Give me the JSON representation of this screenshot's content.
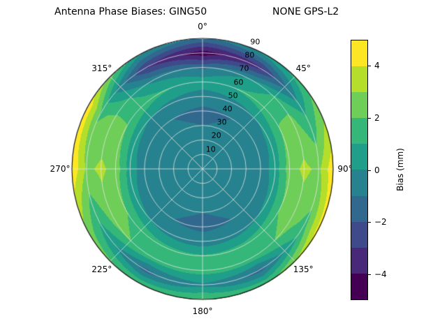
{
  "title": {
    "left": "Antenna Phase Biases: GING50",
    "right": "NONE GPS-L2"
  },
  "chart_data": {
    "type": "heatmap",
    "projection": "polar",
    "style": "filled-contour",
    "title": "Antenna Phase Biases: GING50        NONE GPS-L2",
    "colormap": "viridis",
    "theta_zero_location": "top",
    "theta_direction": "clockwise",
    "theta_ticks_deg": [
      0,
      45,
      90,
      135,
      180,
      225,
      270,
      315
    ],
    "theta_tick_labels": [
      "0°",
      "45°",
      "90°",
      "135°",
      "180°",
      "225°",
      "270°",
      "315°"
    ],
    "r_ticks": [
      10,
      20,
      30,
      40,
      50,
      60,
      70,
      80,
      90
    ],
    "r_tick_labels": [
      "10",
      "20",
      "30",
      "40",
      "50",
      "60",
      "70",
      "80",
      "90"
    ],
    "r_max": 90,
    "levels": [
      -5,
      -4,
      -3,
      -2,
      -1,
      0,
      1,
      2,
      3,
      4,
      5
    ],
    "level_colors": [
      "#440154",
      "#482878",
      "#3e4a89",
      "#31688e",
      "#26828e",
      "#1f9e89",
      "#35b779",
      "#6ece58",
      "#b5de2b",
      "#fde725"
    ],
    "azimuth_deg": [
      0,
      30,
      60,
      90,
      120,
      150,
      180,
      210,
      240,
      270,
      300,
      330
    ],
    "zenith_deg": [
      0,
      10,
      20,
      30,
      40,
      50,
      60,
      70,
      80,
      90
    ],
    "bias_mm": [
      [
        -0.5,
        -0.5,
        -0.5,
        -0.5,
        -0.5,
        -0.5,
        -0.5,
        -0.5,
        -0.5,
        -0.5,
        -0.5,
        -0.5
      ],
      [
        -0.6,
        -0.6,
        -0.5,
        -0.5,
        -0.5,
        -0.6,
        -0.6,
        -0.6,
        -0.5,
        -0.5,
        -0.5,
        -0.6
      ],
      [
        -0.8,
        -0.7,
        -0.6,
        -0.5,
        -0.6,
        -0.7,
        -0.8,
        -0.7,
        -0.6,
        -0.5,
        -0.6,
        -0.7
      ],
      [
        -1.0,
        -0.9,
        -0.7,
        -0.6,
        -0.7,
        -0.9,
        -1.0,
        -0.9,
        -0.7,
        -0.6,
        -0.7,
        -0.9
      ],
      [
        -1.2,
        -1.0,
        -0.8,
        -0.6,
        -0.8,
        -1.0,
        -1.2,
        -1.0,
        -0.8,
        -0.6,
        -0.8,
        -1.0
      ],
      [
        -0.6,
        -0.3,
        0.2,
        0.5,
        0.2,
        -0.3,
        -0.6,
        -0.3,
        0.2,
        0.5,
        0.2,
        -0.3
      ],
      [
        0.6,
        1.2,
        2.0,
        2.6,
        2.0,
        1.4,
        1.2,
        1.4,
        2.0,
        2.6,
        2.0,
        1.2
      ],
      [
        -1.2,
        0.2,
        2.2,
        3.2,
        2.4,
        1.6,
        1.4,
        1.6,
        2.4,
        3.2,
        2.2,
        -0.2
      ],
      [
        -4.6,
        -3.2,
        0.8,
        2.8,
        1.6,
        -1.4,
        -0.2,
        -1.4,
        0.8,
        2.8,
        1.8,
        -3.0
      ],
      [
        -1.2,
        0.4,
        2.4,
        4.8,
        4.4,
        1.8,
        2.2,
        1.8,
        2.6,
        4.8,
        4.6,
        0.2
      ]
    ],
    "colorbar": {
      "label": "Bias (mm)",
      "vmin": -5,
      "vmax": 5,
      "tick_values": [
        4,
        2,
        0,
        -2,
        -4
      ],
      "tick_labels": [
        "4",
        "2",
        "0",
        "−2",
        "−4"
      ]
    }
  }
}
